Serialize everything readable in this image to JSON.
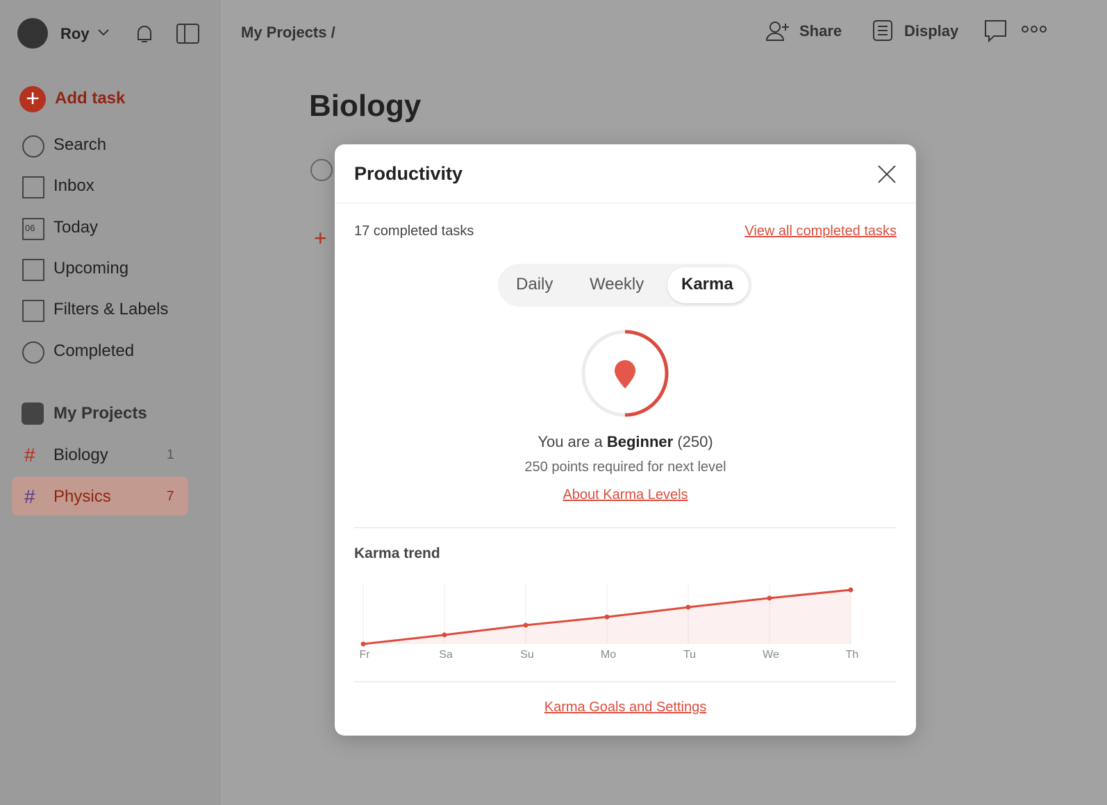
{
  "topbar": {
    "user": "Roy",
    "breadcrumb": "My Projects /",
    "share": "Share",
    "display": "Display"
  },
  "sidebar": {
    "add_task": "Add task",
    "today_icon": "06",
    "nav": [
      "Search",
      "Inbox",
      "Today",
      "Upcoming",
      "Filters & Labels",
      "Completed"
    ],
    "projects_header": "My Projects",
    "projects": [
      {
        "name": "Biology",
        "count": "1"
      },
      {
        "name": "Physics",
        "count": "7"
      }
    ]
  },
  "main": {
    "title": "Biology"
  },
  "modal": {
    "title": "Productivity",
    "completed": "17 completed tasks",
    "view_all": "View all completed tasks",
    "tabs": [
      "Daily",
      "Weekly",
      "Karma"
    ],
    "level_prefix": "You are a",
    "level": "Beginner",
    "level_points": "(250)",
    "next_level": "250 points required for next level",
    "about": "About Karma Levels",
    "trend_title": "Karma trend",
    "footer_link": "Karma Goals and Settings"
  },
  "chart_data": {
    "type": "area",
    "categories": [
      "Fr",
      "Sa",
      "Su",
      "Mo",
      "Tu",
      "We",
      "Th"
    ],
    "values": [
      0,
      42,
      87,
      125,
      170,
      212,
      250
    ],
    "color": "#dc4c3e",
    "ylim": [
      0,
      250
    ]
  }
}
